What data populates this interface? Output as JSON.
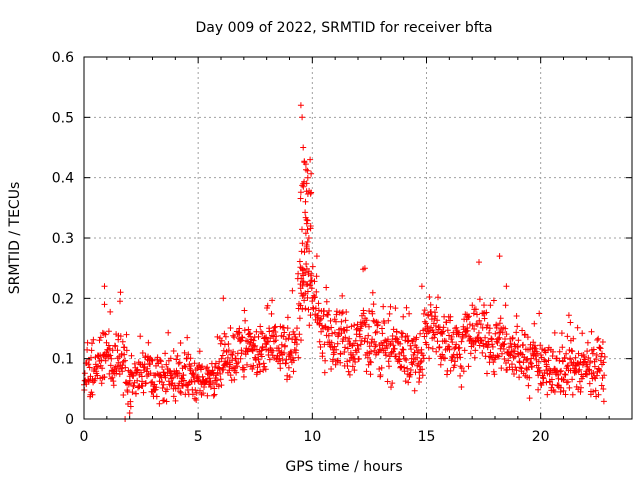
{
  "chart_data": {
    "type": "scatter",
    "title": "Day 009 of 2022, SRMTID for receiver bfta",
    "xlabel": "GPS time / hours",
    "ylabel": "SRMTID / TECUs",
    "xlim": [
      0,
      24
    ],
    "ylim": [
      0,
      0.6
    ],
    "xticks": [
      0,
      5,
      10,
      15,
      20
    ],
    "xtick_labels": [
      "0",
      "5",
      "10",
      "15",
      "20"
    ],
    "yticks": [
      0,
      0.1,
      0.2,
      0.3,
      0.4,
      0.5,
      0.6
    ],
    "ytick_labels": [
      "0",
      "0.1",
      "0.2",
      "0.3",
      "0.4",
      "0.5",
      "0.6"
    ],
    "grid": true,
    "marker": "plus",
    "marker_color": "#ff0000",
    "x_data_range": [
      0,
      22.8
    ],
    "points_estimated": [
      {
        "x": 0.9,
        "y": 0.22
      },
      {
        "x": 0.9,
        "y": 0.19
      },
      {
        "x": 1.6,
        "y": 0.21
      },
      {
        "x": 1.8,
        "y": 0.0
      },
      {
        "x": 2.0,
        "y": 0.01
      },
      {
        "x": 6.1,
        "y": 0.2
      },
      {
        "x": 9.5,
        "y": 0.52
      },
      {
        "x": 9.55,
        "y": 0.5
      },
      {
        "x": 9.6,
        "y": 0.45
      },
      {
        "x": 9.6,
        "y": 0.39
      },
      {
        "x": 9.7,
        "y": 0.36
      },
      {
        "x": 9.75,
        "y": 0.33
      },
      {
        "x": 9.8,
        "y": 0.4
      },
      {
        "x": 9.9,
        "y": 0.43
      },
      {
        "x": 9.85,
        "y": 0.3
      },
      {
        "x": 10.2,
        "y": 0.27
      },
      {
        "x": 12.3,
        "y": 0.25
      },
      {
        "x": 14.8,
        "y": 0.22
      },
      {
        "x": 17.3,
        "y": 0.26
      },
      {
        "x": 18.2,
        "y": 0.27
      },
      {
        "x": 18.5,
        "y": 0.22
      },
      {
        "x": 21.3,
        "y": 0.16
      }
    ],
    "series_profile": [
      {
        "x": 0.0,
        "y": 0.08
      },
      {
        "x": 0.25,
        "y": 0.075
      },
      {
        "x": 0.5,
        "y": 0.075
      },
      {
        "x": 0.75,
        "y": 0.09
      },
      {
        "x": 1.0,
        "y": 0.12
      },
      {
        "x": 1.25,
        "y": 0.08
      },
      {
        "x": 1.5,
        "y": 0.11
      },
      {
        "x": 1.75,
        "y": 0.09
      },
      {
        "x": 2.0,
        "y": 0.06
      },
      {
        "x": 2.25,
        "y": 0.065
      },
      {
        "x": 2.5,
        "y": 0.08
      },
      {
        "x": 2.75,
        "y": 0.09
      },
      {
        "x": 3.0,
        "y": 0.08
      },
      {
        "x": 3.25,
        "y": 0.07
      },
      {
        "x": 3.5,
        "y": 0.06
      },
      {
        "x": 3.75,
        "y": 0.07
      },
      {
        "x": 4.0,
        "y": 0.065
      },
      {
        "x": 4.25,
        "y": 0.07
      },
      {
        "x": 4.5,
        "y": 0.07
      },
      {
        "x": 4.75,
        "y": 0.07
      },
      {
        "x": 5.0,
        "y": 0.065
      },
      {
        "x": 5.25,
        "y": 0.055
      },
      {
        "x": 5.5,
        "y": 0.07
      },
      {
        "x": 5.75,
        "y": 0.08
      },
      {
        "x": 6.0,
        "y": 0.1
      },
      {
        "x": 6.25,
        "y": 0.09
      },
      {
        "x": 6.5,
        "y": 0.1
      },
      {
        "x": 6.75,
        "y": 0.12
      },
      {
        "x": 7.0,
        "y": 0.1
      },
      {
        "x": 7.25,
        "y": 0.12
      },
      {
        "x": 7.5,
        "y": 0.11
      },
      {
        "x": 7.75,
        "y": 0.1
      },
      {
        "x": 8.0,
        "y": 0.12
      },
      {
        "x": 8.25,
        "y": 0.12
      },
      {
        "x": 8.5,
        "y": 0.12
      },
      {
        "x": 8.75,
        "y": 0.12
      },
      {
        "x": 9.0,
        "y": 0.1
      },
      {
        "x": 9.25,
        "y": 0.12
      },
      {
        "x": 9.5,
        "y": 0.2
      },
      {
        "x": 9.75,
        "y": 0.24
      },
      {
        "x": 10.0,
        "y": 0.2
      },
      {
        "x": 10.25,
        "y": 0.16
      },
      {
        "x": 10.5,
        "y": 0.14
      },
      {
        "x": 10.75,
        "y": 0.13
      },
      {
        "x": 11.0,
        "y": 0.13
      },
      {
        "x": 11.25,
        "y": 0.14
      },
      {
        "x": 11.5,
        "y": 0.13
      },
      {
        "x": 11.75,
        "y": 0.1
      },
      {
        "x": 12.0,
        "y": 0.13
      },
      {
        "x": 12.25,
        "y": 0.15
      },
      {
        "x": 12.5,
        "y": 0.12
      },
      {
        "x": 12.75,
        "y": 0.12
      },
      {
        "x": 13.0,
        "y": 0.11
      },
      {
        "x": 13.25,
        "y": 0.13
      },
      {
        "x": 13.5,
        "y": 0.11
      },
      {
        "x": 13.75,
        "y": 0.12
      },
      {
        "x": 14.0,
        "y": 0.1
      },
      {
        "x": 14.25,
        "y": 0.1
      },
      {
        "x": 14.5,
        "y": 0.09
      },
      {
        "x": 14.75,
        "y": 0.1
      },
      {
        "x": 15.0,
        "y": 0.15
      },
      {
        "x": 15.25,
        "y": 0.15
      },
      {
        "x": 15.5,
        "y": 0.14
      },
      {
        "x": 15.75,
        "y": 0.13
      },
      {
        "x": 16.0,
        "y": 0.13
      },
      {
        "x": 16.25,
        "y": 0.12
      },
      {
        "x": 16.5,
        "y": 0.12
      },
      {
        "x": 16.75,
        "y": 0.13
      },
      {
        "x": 17.0,
        "y": 0.14
      },
      {
        "x": 17.25,
        "y": 0.15
      },
      {
        "x": 17.5,
        "y": 0.14
      },
      {
        "x": 17.75,
        "y": 0.13
      },
      {
        "x": 18.0,
        "y": 0.12
      },
      {
        "x": 18.25,
        "y": 0.13
      },
      {
        "x": 18.5,
        "y": 0.12
      },
      {
        "x": 18.75,
        "y": 0.11
      },
      {
        "x": 19.0,
        "y": 0.1
      },
      {
        "x": 19.25,
        "y": 0.1
      },
      {
        "x": 19.5,
        "y": 0.09
      },
      {
        "x": 19.75,
        "y": 0.1
      },
      {
        "x": 20.0,
        "y": 0.09
      },
      {
        "x": 20.25,
        "y": 0.09
      },
      {
        "x": 20.5,
        "y": 0.08
      },
      {
        "x": 20.75,
        "y": 0.07
      },
      {
        "x": 21.0,
        "y": 0.08
      },
      {
        "x": 21.25,
        "y": 0.09
      },
      {
        "x": 21.5,
        "y": 0.09
      },
      {
        "x": 21.75,
        "y": 0.08
      },
      {
        "x": 22.0,
        "y": 0.09
      },
      {
        "x": 22.25,
        "y": 0.09
      },
      {
        "x": 22.5,
        "y": 0.08
      },
      {
        "x": 22.75,
        "y": 0.08
      }
    ]
  }
}
